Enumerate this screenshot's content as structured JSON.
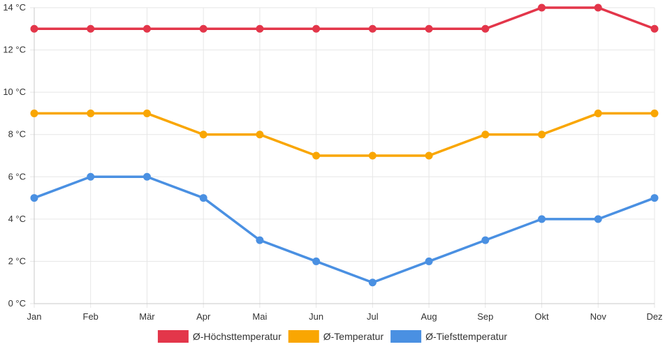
{
  "chart_data": {
    "type": "line",
    "categories": [
      "Jan",
      "Feb",
      "Mär",
      "Apr",
      "Mai",
      "Jun",
      "Jul",
      "Aug",
      "Sep",
      "Okt",
      "Nov",
      "Dez"
    ],
    "y_unit": "°C",
    "ylim": [
      0,
      14
    ],
    "y_ticks": [
      0,
      2,
      4,
      6,
      8,
      10,
      12,
      14
    ],
    "grid": true,
    "legend_position": "bottom",
    "series": [
      {
        "name": "Ø-Höchsttemperatur",
        "color": "#e3364a",
        "values": [
          13,
          13,
          13,
          13,
          13,
          13,
          13,
          13,
          13,
          14,
          14,
          13
        ]
      },
      {
        "name": "Ø-Temperatur",
        "color": "#f9a602",
        "values": [
          9,
          9,
          9,
          8,
          8,
          7,
          7,
          7,
          8,
          8,
          9,
          9
        ]
      },
      {
        "name": "Ø-Tiefsttemperatur",
        "color": "#4a90e2",
        "values": [
          5,
          6,
          6,
          5,
          3,
          2,
          1,
          2,
          3,
          4,
          4,
          5
        ]
      }
    ]
  }
}
